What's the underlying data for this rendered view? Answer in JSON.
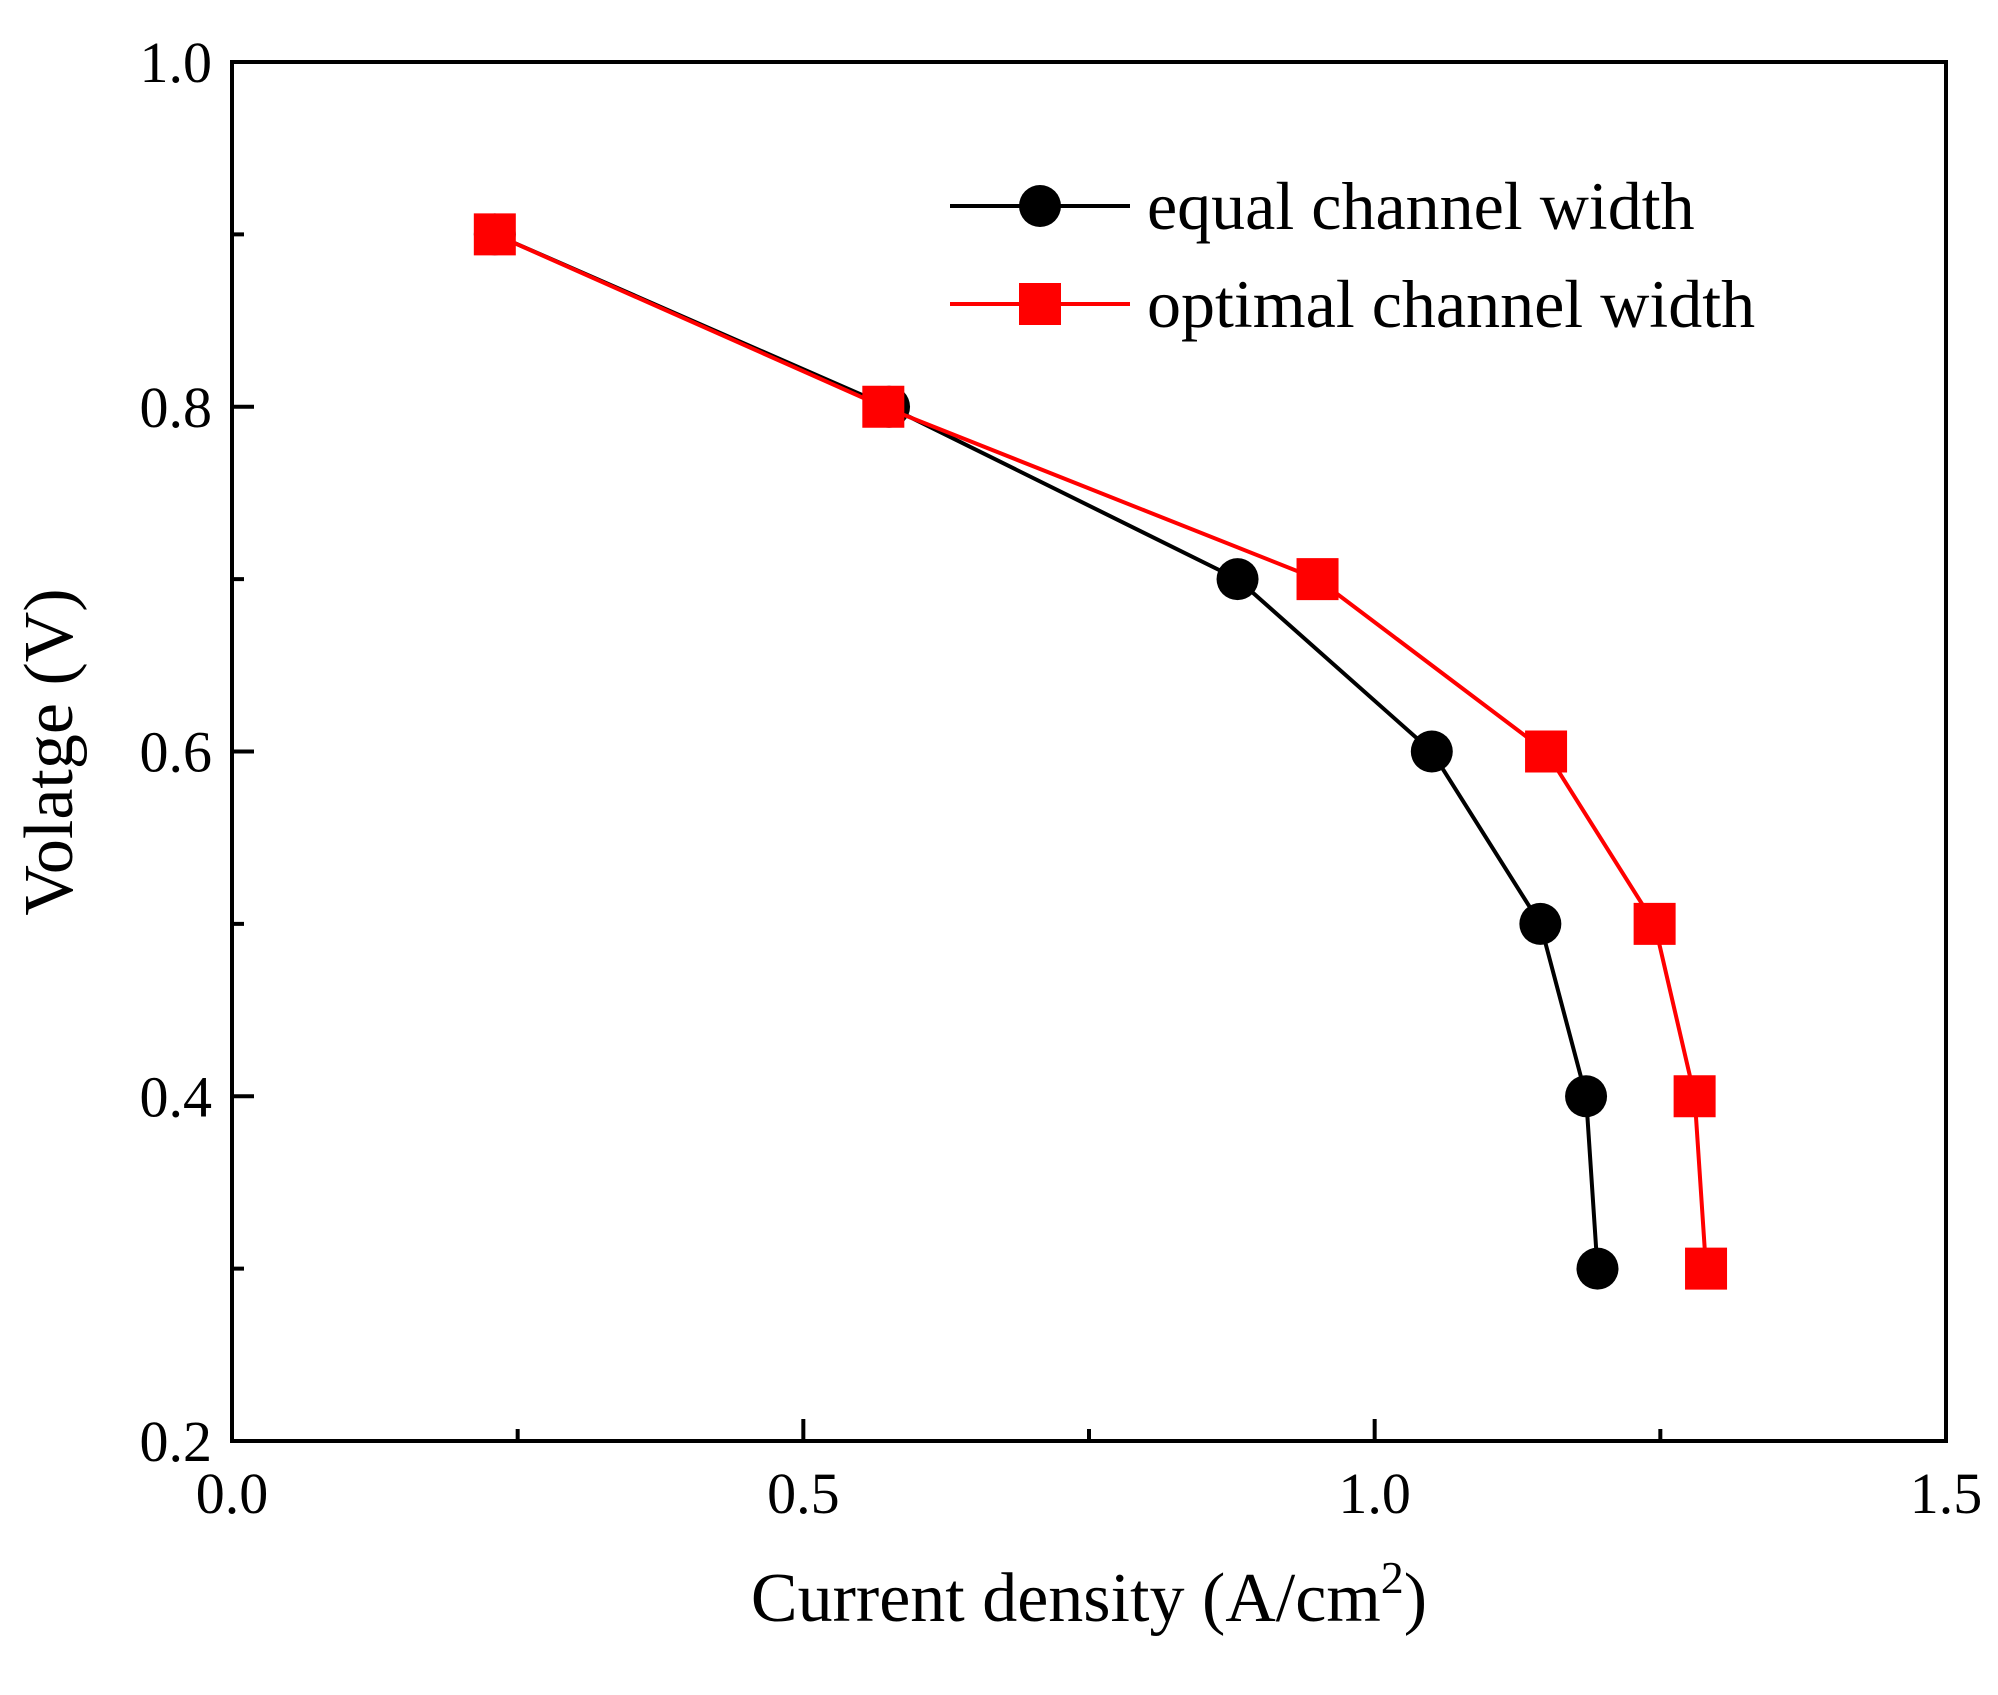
{
  "chart_data": {
    "type": "line",
    "title": "",
    "xlabel": "Current density (A/cm",
    "xlabel_superscript": "2",
    "xlabel_suffix": ")",
    "ylabel": "Volatge (V)",
    "xlim": [
      0,
      1.5
    ],
    "ylim": [
      0.2,
      1.0
    ],
    "xticks": [
      0.0,
      0.5,
      1.0,
      1.5
    ],
    "xtick_labels": [
      "0.0",
      "0.5",
      "1.0",
      "1.5"
    ],
    "xticks_minor": [
      0.25,
      0.75,
      1.25
    ],
    "yticks": [
      0.2,
      0.4,
      0.6,
      0.8,
      1.0
    ],
    "ytick_labels": [
      "0.2",
      "0.4",
      "0.6",
      "0.8",
      "1.0"
    ],
    "yticks_minor": [
      0.3,
      0.5,
      0.7,
      0.9
    ],
    "grid": false,
    "legend_position": "top-right",
    "series": [
      {
        "name": "equal channel width",
        "marker": "circle",
        "color": "#000000",
        "x": [
          0.23,
          0.575,
          0.88,
          1.05,
          1.145,
          1.185,
          1.195
        ],
        "y": [
          0.9,
          0.8,
          0.7,
          0.6,
          0.5,
          0.4,
          0.3
        ]
      },
      {
        "name": "optimal channel width",
        "marker": "square",
        "color": "#ff0000",
        "x": [
          0.23,
          0.57,
          0.95,
          1.15,
          1.245,
          1.28,
          1.29
        ],
        "y": [
          0.9,
          0.8,
          0.7,
          0.6,
          0.5,
          0.4,
          0.3
        ]
      }
    ]
  }
}
